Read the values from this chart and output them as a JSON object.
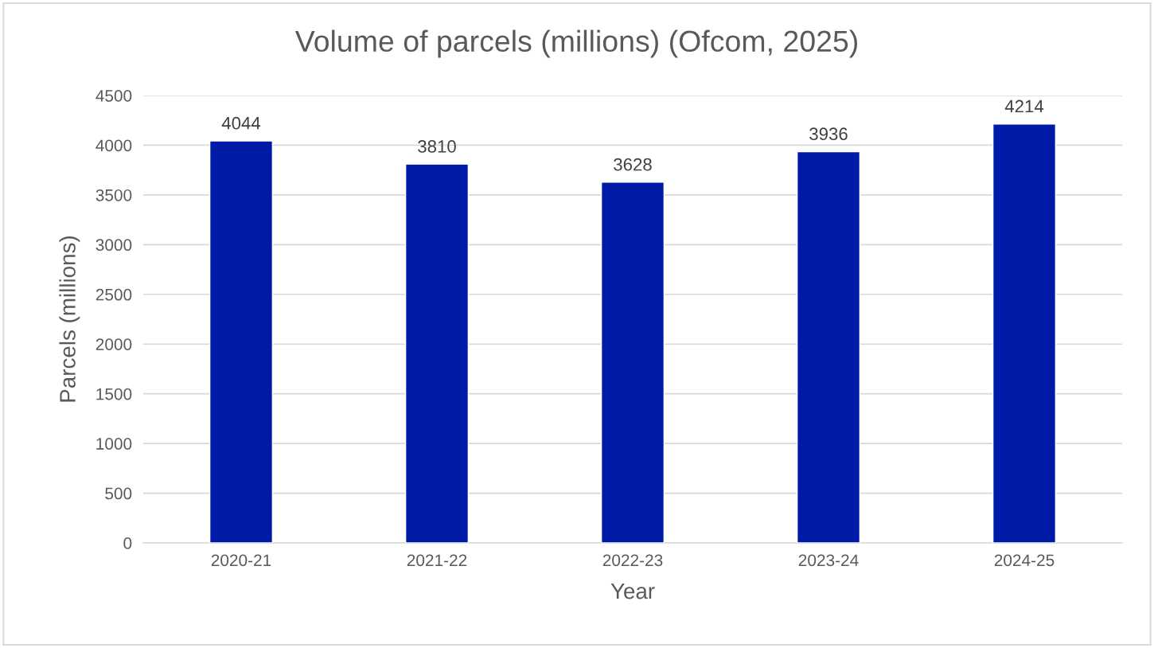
{
  "chart_data": {
    "type": "bar",
    "title": "Volume of parcels (millions) (Ofcom, 2025)",
    "xlabel": "Year",
    "ylabel": "Parcels (millions)",
    "categories": [
      "2020-21",
      "2021-22",
      "2022-23",
      "2023-24",
      "2024-25"
    ],
    "values": [
      4044,
      3810,
      3628,
      3936,
      4214
    ],
    "color": "#001aa8",
    "ylim": [
      0,
      4500
    ],
    "yticks": [
      0,
      500,
      1000,
      1500,
      2000,
      2500,
      3000,
      3500,
      4000,
      4500
    ],
    "grid": "y",
    "data_labels": true
  }
}
